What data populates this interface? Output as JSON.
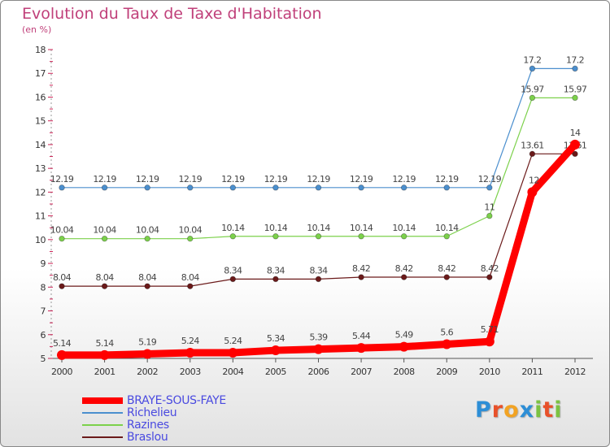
{
  "chart_data": {
    "type": "line",
    "title": "Evolution du Taux de Taxe d'Habitation",
    "ylabel": "(en %)",
    "xlabel": "",
    "categories": [
      "2000",
      "2001",
      "2002",
      "2003",
      "2004",
      "2005",
      "2006",
      "2007",
      "2008",
      "2009",
      "2010",
      "2011",
      "2012"
    ],
    "ylim": [
      5,
      18
    ],
    "yticks": [
      "5",
      "6",
      "7",
      "8",
      "9",
      "10",
      "11",
      "12",
      "13",
      "14",
      "15",
      "16",
      "17",
      "18"
    ],
    "series": [
      {
        "name": "BRAYE-SOUS-FAYE",
        "color": "#ff0000",
        "values": [
          5.14,
          5.14,
          5.19,
          5.24,
          5.24,
          5.34,
          5.39,
          5.44,
          5.49,
          5.6,
          5.71,
          12,
          14
        ],
        "labels": [
          "5.14",
          "5.14",
          "5.19",
          "5.24",
          "5.24",
          "5.34",
          "5.39",
          "5.44",
          "5.49",
          "5.6",
          "5.71",
          "12",
          "14"
        ]
      },
      {
        "name": "Richelieu",
        "color": "#4b8fce",
        "values": [
          12.19,
          12.19,
          12.19,
          12.19,
          12.19,
          12.19,
          12.19,
          12.19,
          12.19,
          12.19,
          12.19,
          17.2,
          17.2
        ],
        "labels": [
          "12.19",
          "12.19",
          "12.19",
          "12.19",
          "12.19",
          "12.19",
          "12.19",
          "12.19",
          "12.19",
          "12.19",
          "12.19",
          "17.2",
          "17.2"
        ]
      },
      {
        "name": "Razines",
        "color": "#7cd14b",
        "values": [
          10.04,
          10.04,
          10.04,
          10.04,
          10.14,
          10.14,
          10.14,
          10.14,
          10.14,
          10.14,
          11,
          15.97,
          15.97
        ],
        "labels": [
          "10.04",
          "10.04",
          "10.04",
          "10.04",
          "10.14",
          "10.14",
          "10.14",
          "10.14",
          "10.14",
          "10.14",
          "11",
          "15.97",
          "15.97"
        ]
      },
      {
        "name": "Braslou",
        "color": "#6b1a1a",
        "values": [
          8.04,
          8.04,
          8.04,
          8.04,
          8.34,
          8.34,
          8.34,
          8.42,
          8.42,
          8.42,
          8.42,
          13.61,
          13.61
        ],
        "labels": [
          "8.04",
          "8.04",
          "8.04",
          "8.04",
          "8.34",
          "8.34",
          "8.34",
          "8.42",
          "8.42",
          "8.42",
          "8.42",
          "13.61",
          "13.61"
        ]
      }
    ],
    "legend_position": "bottom-left",
    "grid": false
  },
  "logo": {
    "letters": [
      "P",
      "r",
      "o",
      "x",
      "i",
      "t",
      "i"
    ],
    "colors": [
      "#2d8ed6",
      "#e8512a",
      "#f2a323",
      "#2d8ed6",
      "#7cc242",
      "#e8512a",
      "#7cc242"
    ]
  }
}
